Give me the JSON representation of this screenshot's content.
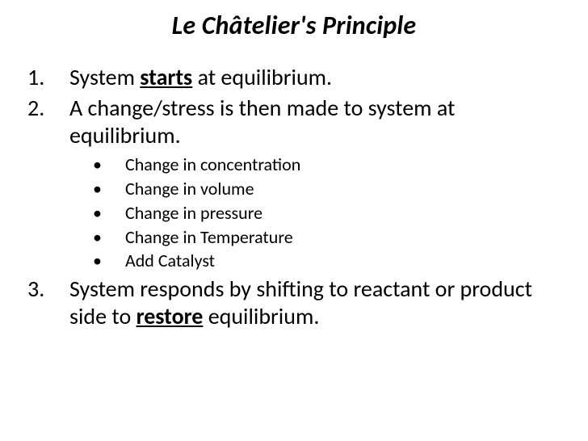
{
  "title": "Le Châtelier's Principle",
  "main_items": [
    {
      "prefix": "System ",
      "emphasis": "starts",
      "suffix": " at equilibrium."
    },
    {
      "prefix": "A change/stress is then made to system at equilibrium.",
      "emphasis": "",
      "suffix": ""
    },
    {
      "prefix": "System responds by shifting to reactant or product side to ",
      "emphasis": "restore",
      "suffix": " equilibrium."
    }
  ],
  "sub_items": [
    "Change in concentration",
    "Change in volume",
    "Change in pressure",
    "Change in Temperature",
    "Add Catalyst"
  ],
  "colors": {
    "background": "#ffffff",
    "text": "#000000"
  },
  "fonts": {
    "title_size": 32,
    "main_size": 28,
    "sub_size": 22
  }
}
